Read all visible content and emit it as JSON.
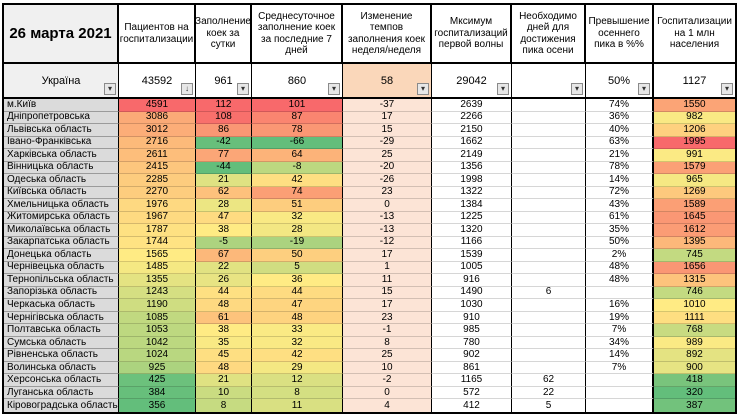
{
  "title_date": "26 марта 2021",
  "columns": [
    {
      "key": "region",
      "label": "26 марта 2021"
    },
    {
      "key": "patients",
      "label": "Пациентов на госпитализации"
    },
    {
      "key": "daily_fill",
      "label": "Заполнение коек за сутки"
    },
    {
      "key": "avg7_fill",
      "label": "Среднесуточное заполнение коек за последние 7 дней"
    },
    {
      "key": "change_wow",
      "label": "Изменение темпов заполнения коек неделя/неделя"
    },
    {
      "key": "max_wave1",
      "label": "Мксимум госпитализаций первой волны"
    },
    {
      "key": "days_to_autumn_peak",
      "label": "Необходимо дней для достижения пика осени"
    },
    {
      "key": "exceed_autumn_peak",
      "label": "Превышение осеннего пика в %%"
    },
    {
      "key": "per_1m",
      "label": "Госпитализации на 1 млн населения"
    }
  ],
  "summary": {
    "region": "Україна",
    "values": [
      "43592",
      "961",
      "860",
      "58",
      "29042",
      "",
      "50%",
      "1127"
    ]
  },
  "rows": [
    {
      "region": "м.Київ",
      "values": [
        4591,
        112,
        101,
        -37,
        2639,
        "",
        "74%",
        1550
      ]
    },
    {
      "region": "Дніпропетровська",
      "values": [
        3086,
        108,
        87,
        17,
        2266,
        "",
        "36%",
        982
      ]
    },
    {
      "region": "Львівська область",
      "values": [
        3012,
        86,
        78,
        15,
        2150,
        "",
        "40%",
        1206
      ]
    },
    {
      "region": "Івано-Франківська",
      "values": [
        2716,
        -42,
        -66,
        -29,
        1662,
        "",
        "63%",
        1995
      ]
    },
    {
      "region": "Харківська область",
      "values": [
        2611,
        77,
        64,
        25,
        2149,
        "",
        "21%",
        991
      ]
    },
    {
      "region": "Вінницька область",
      "values": [
        2415,
        -44,
        -8,
        -20,
        1356,
        "",
        "78%",
        1579
      ]
    },
    {
      "region": "Одеська область",
      "values": [
        2285,
        21,
        42,
        -26,
        1998,
        "",
        "14%",
        965
      ]
    },
    {
      "region": "Київська область",
      "values": [
        2270,
        62,
        74,
        23,
        1322,
        "",
        "72%",
        1269
      ]
    },
    {
      "region": "Хмельницька область",
      "values": [
        1976,
        28,
        51,
        0,
        1384,
        "",
        "43%",
        1589
      ]
    },
    {
      "region": "Житомирська область",
      "values": [
        1967,
        47,
        32,
        -13,
        1225,
        "",
        "61%",
        1645
      ]
    },
    {
      "region": "Миколаївська область",
      "values": [
        1787,
        38,
        28,
        -13,
        1320,
        "",
        "35%",
        1612
      ]
    },
    {
      "region": "Закарпатська область",
      "values": [
        1744,
        -5,
        -19,
        -12,
        1166,
        "",
        "50%",
        1395
      ]
    },
    {
      "region": "Донецька область",
      "values": [
        1565,
        67,
        50,
        17,
        1539,
        "",
        "2%",
        745
      ]
    },
    {
      "region": "Чернівецька область",
      "values": [
        1485,
        22,
        5,
        1,
        1005,
        "",
        "48%",
        1656
      ]
    },
    {
      "region": "Тернопільська область",
      "values": [
        1355,
        26,
        36,
        11,
        916,
        "",
        "48%",
        1315
      ]
    },
    {
      "region": "Запорізька область",
      "values": [
        1243,
        44,
        44,
        15,
        1490,
        6,
        "",
        746
      ]
    },
    {
      "region": "Черкаська область",
      "values": [
        1190,
        48,
        47,
        17,
        1030,
        "",
        "16%",
        1010
      ]
    },
    {
      "region": "Чернігівська область",
      "values": [
        1085,
        61,
        48,
        23,
        910,
        "",
        "19%",
        1111
      ]
    },
    {
      "region": "Полтавська область",
      "values": [
        1053,
        38,
        33,
        -1,
        985,
        "",
        "7%",
        768
      ]
    },
    {
      "region": "Сумська область",
      "values": [
        1042,
        35,
        32,
        8,
        780,
        "",
        "34%",
        989
      ]
    },
    {
      "region": "Рівненська область",
      "values": [
        1024,
        45,
        42,
        25,
        902,
        "",
        "14%",
        892
      ]
    },
    {
      "region": "Волинська область",
      "values": [
        925,
        48,
        29,
        10,
        861,
        "",
        "7%",
        900
      ]
    },
    {
      "region": "Херсонська область",
      "values": [
        425,
        21,
        12,
        -2,
        1165,
        62,
        "",
        418
      ]
    },
    {
      "region": "Луганська область",
      "values": [
        384,
        10,
        8,
        0,
        572,
        22,
        "",
        320
      ]
    },
    {
      "region": "Кіровоградська область",
      "values": [
        356,
        8,
        11,
        4,
        412,
        5,
        "",
        387
      ]
    }
  ],
  "icons": {
    "filter_dropdown": "▾",
    "filter_sort_dropdown": "↓"
  },
  "colors": {
    "scale_low": "#63BE7B",
    "scale_mid": "#FFEB84",
    "scale_high": "#F8696B",
    "change_column_bg": "#FCE4D6",
    "summary_change_bg": "#FAD7BA",
    "region_cell_bg": "#DBDBDB",
    "corner_header_bg": "#F0F0F0",
    "summary_region_bg": "#F0F0F0",
    "header_bg": "#FFFFFF",
    "border": "#000000"
  }
}
